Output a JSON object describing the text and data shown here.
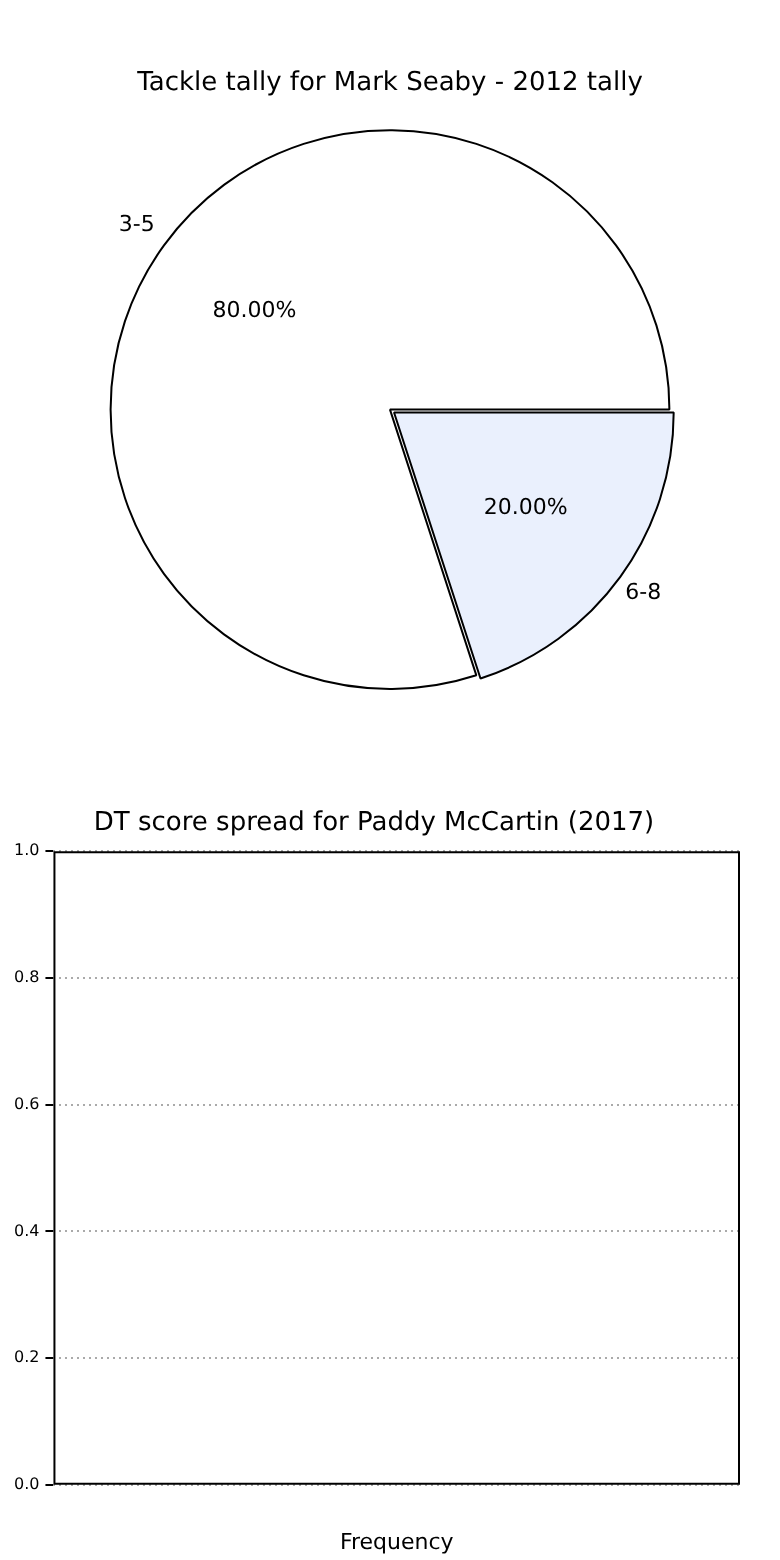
{
  "chart_data": [
    {
      "type": "pie",
      "title": "Tackle tally for Mark Seaby - 2012 tally",
      "categories": [
        "3-5",
        "6-8"
      ],
      "values": [
        80,
        20
      ],
      "colors": [
        "#ffffff",
        "#eaf0fd"
      ],
      "value_labels": [
        "80.00%",
        "20.00%"
      ]
    },
    {
      "type": "bar",
      "title": "DT score spread for Paddy McCartin (2017)",
      "xlabel": "Frequency",
      "categories": [
        null
      ],
      "values": [
        null
      ],
      "ylim": [
        0,
        1
      ],
      "yticks": [
        {
          "value": 0,
          "label": "0.0"
        },
        {
          "value": 0.2,
          "label": "0.2"
        },
        {
          "value": 0.4,
          "label": "0.4"
        },
        {
          "value": 0.6,
          "label": "0.6"
        },
        {
          "value": 0.8,
          "label": "0.8"
        },
        {
          "value": 1,
          "label": "1.0"
        }
      ],
      "grid": "y"
    }
  ]
}
